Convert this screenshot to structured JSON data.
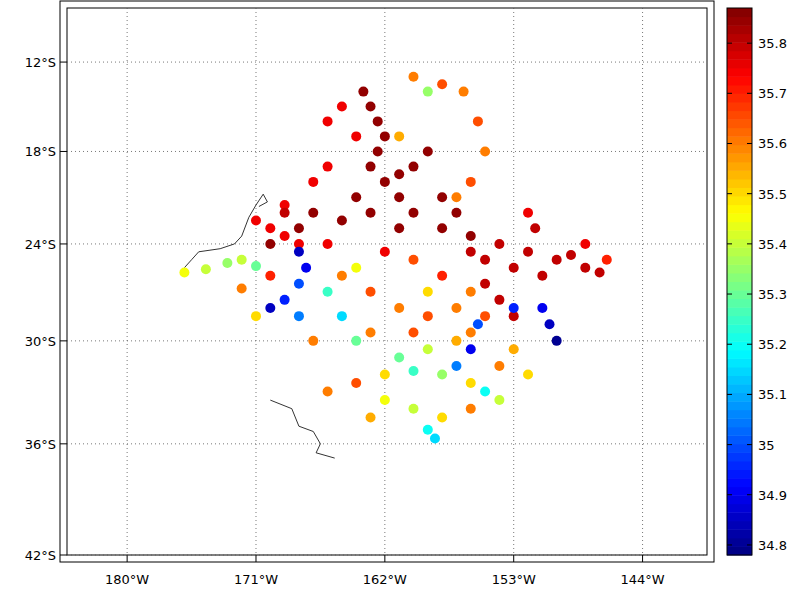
{
  "chart_data": {
    "type": "scatter",
    "xlim": [
      -184.2,
      -139.5
    ],
    "xticks": [
      {
        "value": -180,
        "label": "180°W"
      },
      {
        "value": -171,
        "label": "171°W"
      },
      {
        "value": -162,
        "label": "162°W"
      },
      {
        "value": -153,
        "label": "153°W"
      },
      {
        "value": -144,
        "label": "144°W"
      }
    ],
    "ylim": [
      -42,
      -8.3
    ],
    "yticks": [
      {
        "value": -12,
        "label": "12°S"
      },
      {
        "value": -18,
        "label": "18°S"
      },
      {
        "value": -24,
        "label": "24°S"
      },
      {
        "value": -30,
        "label": "30°S"
      },
      {
        "value": -36,
        "label": "36°S"
      },
      {
        "value": -42,
        "label": "42°S"
      }
    ],
    "grid": true,
    "x": [
      -163.5,
      -163,
      -162.5,
      -162,
      -162.5,
      -163,
      -162,
      -161,
      -160,
      -161,
      -163,
      -165,
      -167,
      -168,
      -164,
      -160,
      -159,
      -161,
      -158,
      -157,
      -158,
      -156,
      -165,
      -166,
      -164,
      -166,
      -167,
      -169,
      -170,
      -168,
      -166,
      -169,
      -160,
      -158,
      -156.5,
      -155.5,
      -155,
      -156,
      -157,
      -159,
      -161,
      -154,
      -152,
      -150,
      -149,
      -148,
      -147,
      -151,
      -153,
      -155,
      -156,
      -155,
      -154,
      -153,
      -165,
      -163,
      -161,
      -159,
      -157,
      -155,
      -156,
      -160,
      -163,
      -176,
      -174.5,
      -173,
      -172,
      -171,
      -168,
      -167.5,
      -168,
      -169,
      -170,
      -168,
      -166,
      -165,
      -164,
      -151,
      -150.5,
      -150,
      -153,
      -156,
      -157,
      -155.5,
      -166,
      -164,
      -162,
      -160,
      -158,
      -156,
      -155,
      -154,
      -156,
      -158,
      -159,
      -158.5,
      -160,
      -162,
      -163,
      -161,
      -159,
      -157,
      -154,
      -152,
      -153,
      -167,
      -170,
      -172,
      -171,
      -169,
      -171,
      -170,
      -160,
      -162,
      -158,
      -156,
      -164,
      -159,
      -152,
      -151.5,
      -148,
      -146.5
    ],
    "values": [
      -14,
      -15,
      -16,
      -17,
      -18,
      -19,
      -20,
      -21,
      -22,
      -23,
      -22,
      -22.5,
      -22,
      -23,
      -21,
      -19,
      -18,
      -19.5,
      -21,
      -22,
      -23,
      -23.5,
      -15,
      -16,
      -17,
      -19,
      -20,
      -21.5,
      -23,
      -24,
      -24,
      -23.5,
      -13,
      -13.5,
      -14,
      -16,
      -18,
      -20,
      -21,
      -14,
      -17,
      -24,
      -24.5,
      -25,
      -24.7,
      -25.5,
      -25.8,
      -26,
      -25.5,
      -25,
      -24.5,
      -26.5,
      -27.5,
      -28.5,
      -26,
      -27,
      -28,
      -28.5,
      -28,
      -28.5,
      -29.5,
      -29.5,
      -29.5,
      -25.8,
      -25.6,
      -25.2,
      -25,
      -25.4,
      -24.5,
      -25.5,
      -26.5,
      -27.5,
      -28,
      -28.5,
      -27,
      -28.5,
      -30,
      -28,
      -29,
      -30,
      -28,
      -30.5,
      -31.5,
      -29,
      -33,
      -32.5,
      -32,
      -31.8,
      -32,
      -32.5,
      -33,
      -33.5,
      -34,
      -34.5,
      -35.2,
      -35.7,
      -34,
      -33.5,
      -34.5,
      -31,
      -30.5,
      -30,
      -31.5,
      -32,
      -30.5,
      -30,
      -26,
      -26.8,
      -28.5,
      -22,
      -22.5,
      -24,
      -25,
      -24.5,
      -26,
      -27,
      -25.5,
      -27,
      -22,
      -23,
      -24,
      -25
    ],
    "c": [
      35.85,
      35.85,
      35.85,
      35.85,
      35.85,
      35.85,
      35.85,
      35.85,
      35.85,
      35.85,
      35.85,
      35.85,
      35.85,
      35.85,
      35.85,
      35.85,
      35.85,
      35.85,
      35.85,
      35.85,
      35.85,
      35.85,
      35.75,
      35.75,
      35.75,
      35.75,
      35.75,
      35.75,
      35.75,
      35.75,
      35.75,
      35.75,
      35.6,
      35.65,
      35.6,
      35.65,
      35.6,
      35.65,
      35.6,
      35.35,
      35.55,
      35.8,
      35.8,
      35.8,
      35.8,
      35.8,
      35.8,
      35.8,
      35.8,
      35.8,
      35.8,
      35.8,
      35.8,
      35.8,
      35.6,
      35.65,
      35.6,
      35.65,
      35.6,
      35.65,
      35.6,
      35.65,
      35.6,
      35.45,
      35.4,
      35.35,
      35.4,
      35.3,
      34.85,
      34.9,
      35,
      34.95,
      34.85,
      35.05,
      35.25,
      35.15,
      35.3,
      34.9,
      34.85,
      34.8,
      34.95,
      34.9,
      35.05,
      35,
      35.6,
      35.65,
      35.5,
      35.25,
      35.35,
      35.5,
      35.2,
      35.4,
      35.6,
      35.5,
      35.2,
      35.15,
      35.4,
      35.45,
      35.55,
      35.3,
      35.4,
      35.55,
      35.6,
      35.5,
      35.55,
      35.6,
      35.7,
      35.6,
      35.5,
      35.8,
      35.75,
      35.85,
      35.65,
      35.75,
      35.7,
      35.6,
      35.45,
      35.5,
      35.75,
      35.8,
      35.75,
      35.7
    ],
    "clim": [
      34.78,
      35.87
    ],
    "cticks": [
      34.8,
      34.9,
      35,
      35.1,
      35.2,
      35.3,
      35.4,
      35.5,
      35.6,
      35.7,
      35.8
    ],
    "tracks": [
      {
        "x": [
          -176,
          -175.5,
          -175,
          -173.5,
          -172.5,
          -172,
          -171.5,
          -171,
          -170.5,
          -170.2,
          -170.8
        ],
        "y": [
          -25.5,
          -25,
          -24.5,
          -24.3,
          -24,
          -23.5,
          -22.3,
          -21.5,
          -20.8,
          -21.3,
          -21.6
        ]
      },
      {
        "x": [
          -170,
          -168.5,
          -168,
          -167,
          -166.5,
          -166.8,
          -165.5
        ],
        "y": [
          -33.5,
          -34,
          -35,
          -35.3,
          -36,
          -36.5,
          -36.8
        ]
      }
    ]
  }
}
